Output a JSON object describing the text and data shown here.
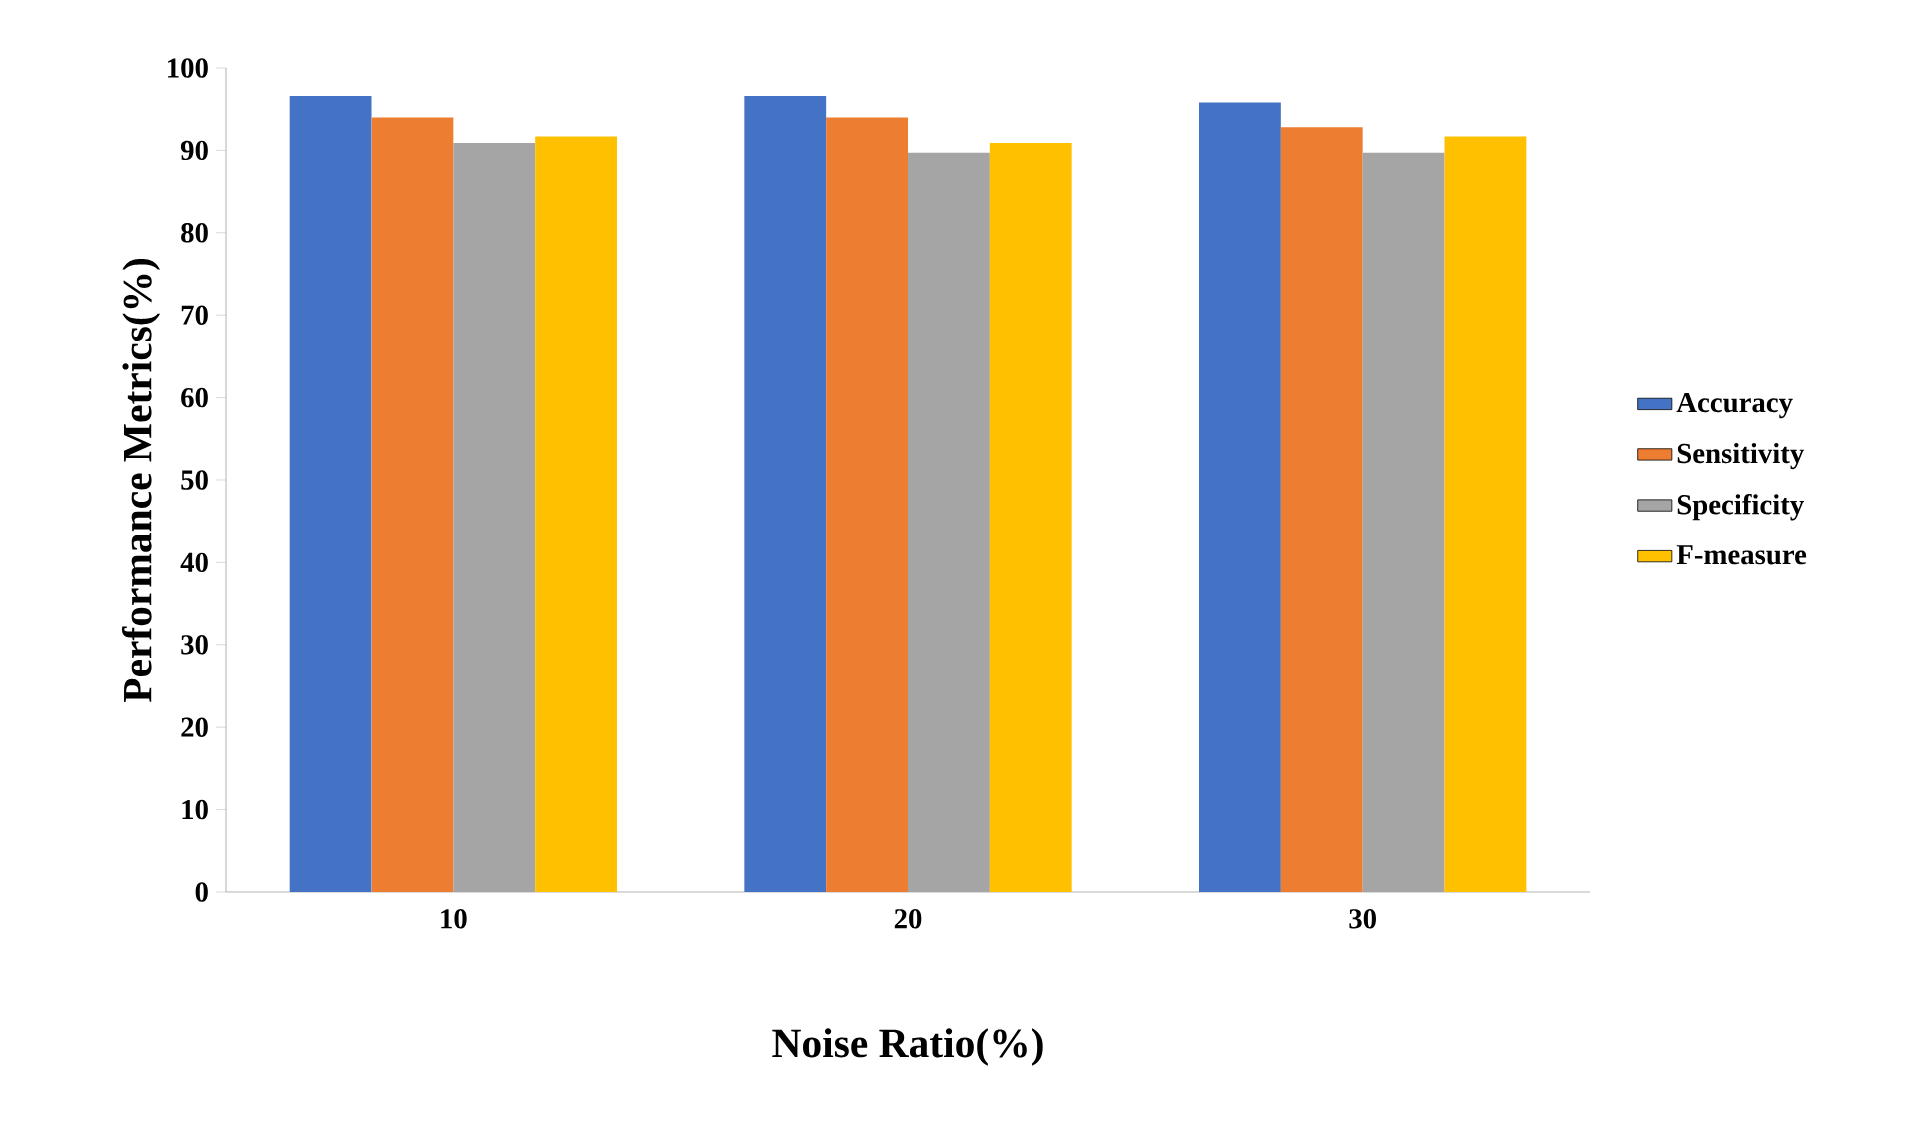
{
  "chart_data": {
    "type": "bar",
    "xlabel": "Noise Ratio(%)",
    "ylabel": "Performance Metrics(%)",
    "categories": [
      "10",
      "20",
      "30"
    ],
    "series": [
      {
        "name": "Accuracy",
        "color": "#4472c4",
        "values": [
          96.6,
          96.6,
          95.8
        ]
      },
      {
        "name": "Sensitivity",
        "color": "#ed7d31",
        "values": [
          94.0,
          94.0,
          92.8
        ]
      },
      {
        "name": "Specificity",
        "color": "#a5a5a5",
        "values": [
          90.9,
          89.7,
          89.7
        ]
      },
      {
        "name": "F-measure",
        "color": "#ffc000",
        "values": [
          91.7,
          90.9,
          91.7
        ]
      }
    ],
    "ylim": [
      0,
      100
    ],
    "yticks": [
      0,
      10,
      20,
      30,
      40,
      50,
      60,
      70,
      80,
      90,
      100
    ],
    "grid": false,
    "legend": "right"
  }
}
